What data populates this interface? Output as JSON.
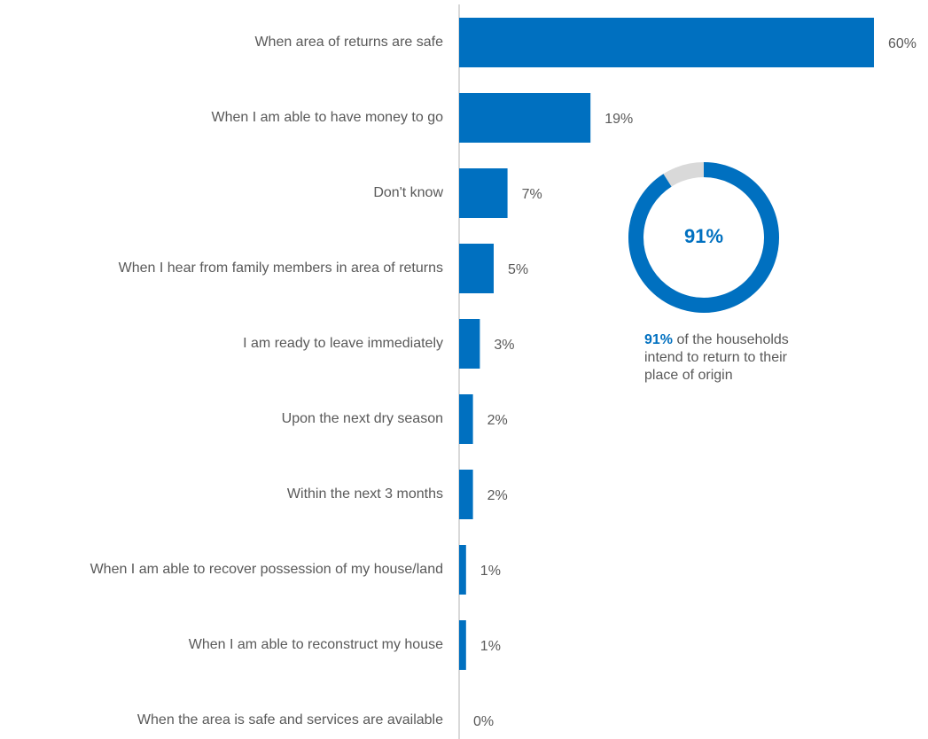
{
  "chart_data": [
    {
      "type": "hbar",
      "categories": [
        "When area of returns are safe",
        "When I am able to have money to go",
        "Don't know",
        "When I hear from family members in area of returns",
        "I am ready to leave immediately",
        "Upon the next dry season",
        "Within the next 3 months",
        "When I am able to recover possession of my house/land",
        "When I am able to reconstruct my house",
        "When the area is safe and services are available"
      ],
      "values": [
        60,
        19,
        7,
        5,
        3,
        2,
        2,
        1,
        1,
        0
      ],
      "value_labels": [
        "60%",
        "19%",
        "7%",
        "5%",
        "3%",
        "2%",
        "2%",
        "1%",
        "1%",
        "0%"
      ],
      "color": "#0070c0",
      "xlim": [
        0,
        60
      ]
    },
    {
      "type": "donut",
      "value": 91,
      "value_label": "91%",
      "color": "#0070c0",
      "rest_color": "#d9d9d9",
      "caption": "of the households intend to return to their place of origin"
    }
  ]
}
